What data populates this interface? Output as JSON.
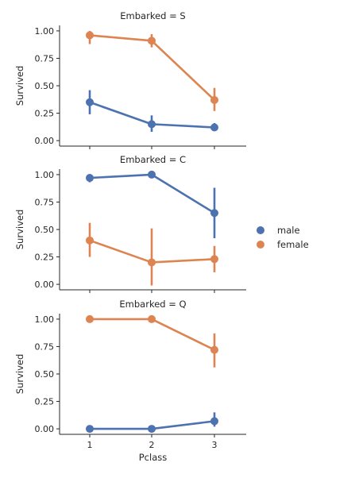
{
  "chart_data": {
    "type": "line",
    "subtype": "pointplot-facet-rows",
    "x": [
      1,
      2,
      3
    ],
    "xlabel": "Pclass",
    "ylabel": "Survived",
    "ylim": [
      -0.05,
      1.05
    ],
    "yticks": [
      "0.00",
      "0.25",
      "0.50",
      "0.75",
      "1.00"
    ],
    "xticks": [
      "1",
      "2",
      "3"
    ],
    "grid": false,
    "legend": {
      "placement": "right",
      "entries": [
        {
          "name": "male",
          "color": "#4c72b0"
        },
        {
          "name": "female",
          "color": "#dd8452"
        }
      ]
    },
    "panels": [
      {
        "title": "Embarked = S",
        "series": [
          {
            "name": "male",
            "values": [
              0.35,
              0.15,
              0.12
            ],
            "ci_low": [
              0.24,
              0.08,
              0.09
            ],
            "ci_high": [
              0.46,
              0.23,
              0.16
            ]
          },
          {
            "name": "female",
            "values": [
              0.96,
              0.91,
              0.37
            ],
            "ci_low": [
              0.88,
              0.85,
              0.27
            ],
            "ci_high": [
              1.0,
              0.97,
              0.48
            ]
          }
        ]
      },
      {
        "title": "Embarked = C",
        "series": [
          {
            "name": "male",
            "values": [
              0.97,
              1.0,
              0.65
            ],
            "ci_low": [
              0.93,
              1.0,
              0.42
            ],
            "ci_high": [
              1.0,
              1.0,
              0.88
            ]
          },
          {
            "name": "female",
            "values": [
              0.4,
              0.2,
              0.23
            ],
            "ci_low": [
              0.25,
              -0.01,
              0.11
            ],
            "ci_high": [
              0.56,
              0.51,
              0.35
            ]
          }
        ]
      },
      {
        "title": "Embarked = Q",
        "series": [
          {
            "name": "male",
            "values": [
              0.0,
              0.0,
              0.07
            ],
            "ci_low": [
              0.0,
              0.0,
              0.02
            ],
            "ci_high": [
              0.0,
              0.0,
              0.15
            ]
          },
          {
            "name": "female",
            "values": [
              1.0,
              1.0,
              0.72
            ],
            "ci_low": [
              1.0,
              1.0,
              0.56
            ],
            "ci_high": [
              1.0,
              1.0,
              0.87
            ]
          }
        ]
      }
    ]
  }
}
